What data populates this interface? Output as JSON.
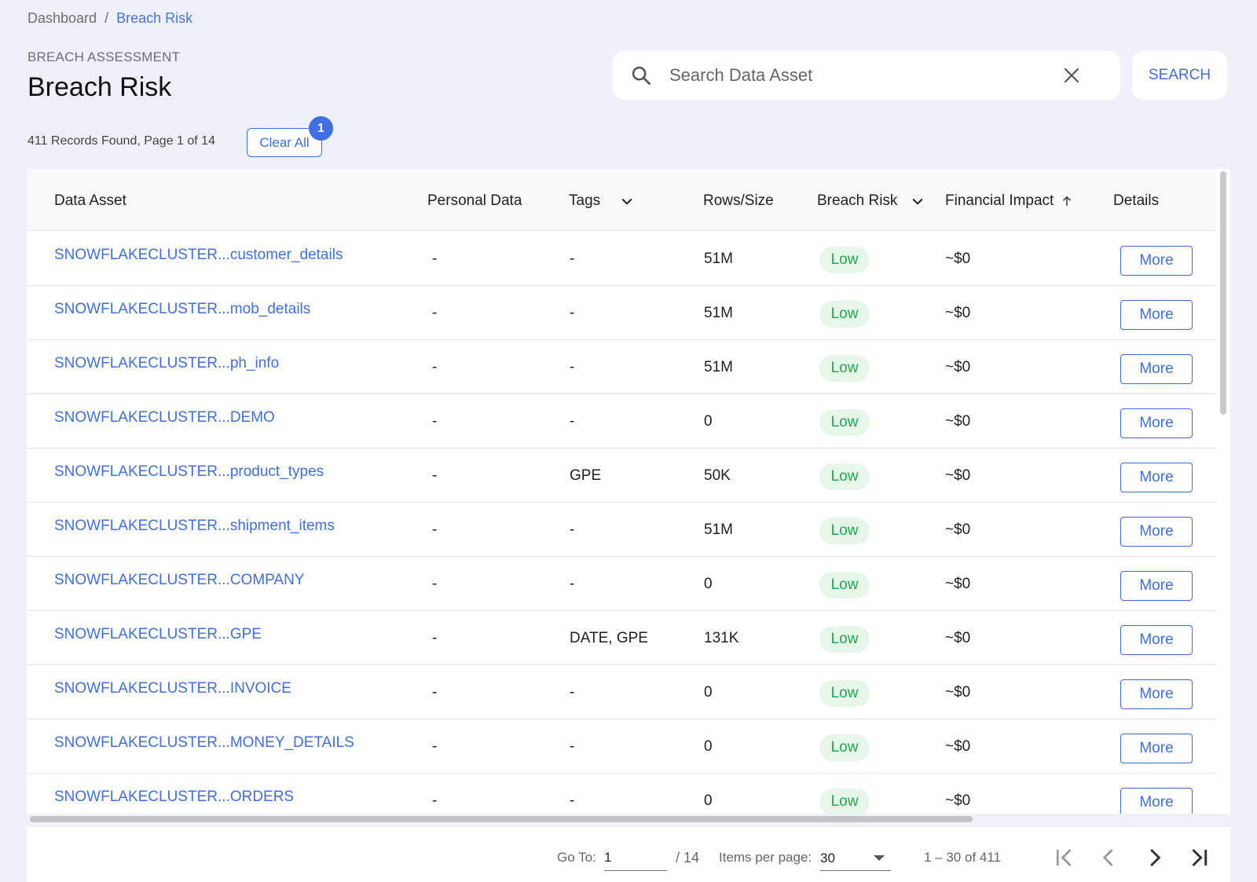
{
  "breadcrumb": {
    "parent": "Dashboard",
    "separator": "/",
    "current": "Breach Risk"
  },
  "header": {
    "eyebrow": "BREACH ASSESSMENT",
    "title": "Breach Risk"
  },
  "search": {
    "placeholder": "Search Data Asset",
    "button_label": "SEARCH"
  },
  "summary": {
    "records_text": "411 Records Found, Page 1 of 14",
    "clear_all_label": "Clear All",
    "filter_count": "1"
  },
  "table": {
    "columns": {
      "data_asset": "Data Asset",
      "personal_data": "Personal Data",
      "tags": "Tags",
      "rows_size": "Rows/Size",
      "breach_risk": "Breach Risk",
      "financial_impact": "Financial Impact",
      "details": "Details"
    },
    "rows": [
      {
        "asset": "SNOWFLAKECLUSTER...customer_details",
        "personal": "-",
        "tags": "-",
        "size": "51M",
        "risk": "Low",
        "impact": "~$0",
        "action": "More"
      },
      {
        "asset": "SNOWFLAKECLUSTER...mob_details",
        "personal": "-",
        "tags": "-",
        "size": "51M",
        "risk": "Low",
        "impact": "~$0",
        "action": "More"
      },
      {
        "asset": "SNOWFLAKECLUSTER...ph_info",
        "personal": "-",
        "tags": "-",
        "size": "51M",
        "risk": "Low",
        "impact": "~$0",
        "action": "More"
      },
      {
        "asset": "SNOWFLAKECLUSTER...DEMO",
        "personal": "-",
        "tags": "-",
        "size": "0",
        "risk": "Low",
        "impact": "~$0",
        "action": "More"
      },
      {
        "asset": "SNOWFLAKECLUSTER...product_types",
        "personal": "-",
        "tags": "GPE",
        "size": "50K",
        "risk": "Low",
        "impact": "~$0",
        "action": "More"
      },
      {
        "asset": "SNOWFLAKECLUSTER...shipment_items",
        "personal": "-",
        "tags": "-",
        "size": "51M",
        "risk": "Low",
        "impact": "~$0",
        "action": "More"
      },
      {
        "asset": "SNOWFLAKECLUSTER...COMPANY",
        "personal": "-",
        "tags": "-",
        "size": "0",
        "risk": "Low",
        "impact": "~$0",
        "action": "More"
      },
      {
        "asset": "SNOWFLAKECLUSTER...GPE",
        "personal": "-",
        "tags": "DATE, GPE",
        "size": "131K",
        "risk": "Low",
        "impact": "~$0",
        "action": "More"
      },
      {
        "asset": "SNOWFLAKECLUSTER...INVOICE",
        "personal": "-",
        "tags": "-",
        "size": "0",
        "risk": "Low",
        "impact": "~$0",
        "action": "More"
      },
      {
        "asset": "SNOWFLAKECLUSTER...MONEY_DETAILS",
        "personal": "-",
        "tags": "-",
        "size": "0",
        "risk": "Low",
        "impact": "~$0",
        "action": "More"
      },
      {
        "asset": "SNOWFLAKECLUSTER...ORDERS",
        "personal": "-",
        "tags": "-",
        "size": "0",
        "risk": "Low",
        "impact": "~$0",
        "action": "More"
      }
    ]
  },
  "pagination": {
    "goto_label": "Go To:",
    "goto_value": "1",
    "total_pages": "/ 14",
    "items_per_page_label": "Items per page:",
    "items_per_page": "30",
    "range_text": "1 – 30 of 411"
  },
  "colors": {
    "accent": "#3f6ee6",
    "risk_low_bg": "#e6f7ea",
    "risk_low_text": "#1fa853",
    "page_bg": "#eef1f9"
  }
}
